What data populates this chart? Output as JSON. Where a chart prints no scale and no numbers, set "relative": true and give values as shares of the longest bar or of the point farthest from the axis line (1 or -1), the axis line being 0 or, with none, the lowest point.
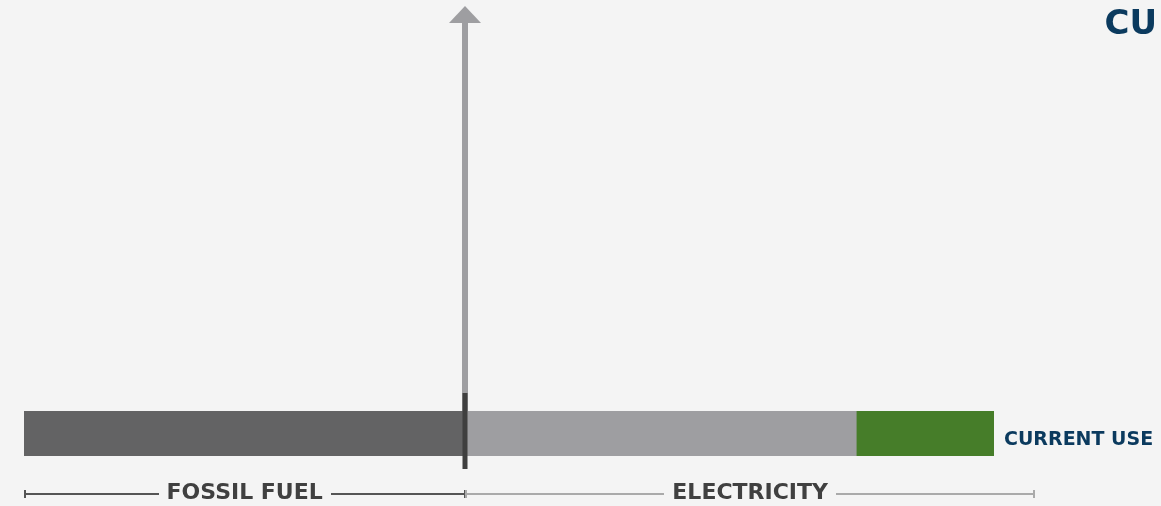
{
  "chart_data": {
    "type": "bar",
    "orientation": "horizontal",
    "stacked": true,
    "relative": true,
    "categories": [
      null
    ],
    "series": [
      {
        "color": "#636364",
        "values": [
          0.455
        ]
      },
      {
        "color": "#9e9ea1",
        "values": [
          0.403
        ]
      },
      {
        "name": "CURRENT USE",
        "color": "#467d29",
        "values": [
          0.142
        ]
      }
    ],
    "annotations": [
      "FOSSIL FUEL",
      "ELECTRICITY",
      "CU"
    ],
    "legend": false
  }
}
